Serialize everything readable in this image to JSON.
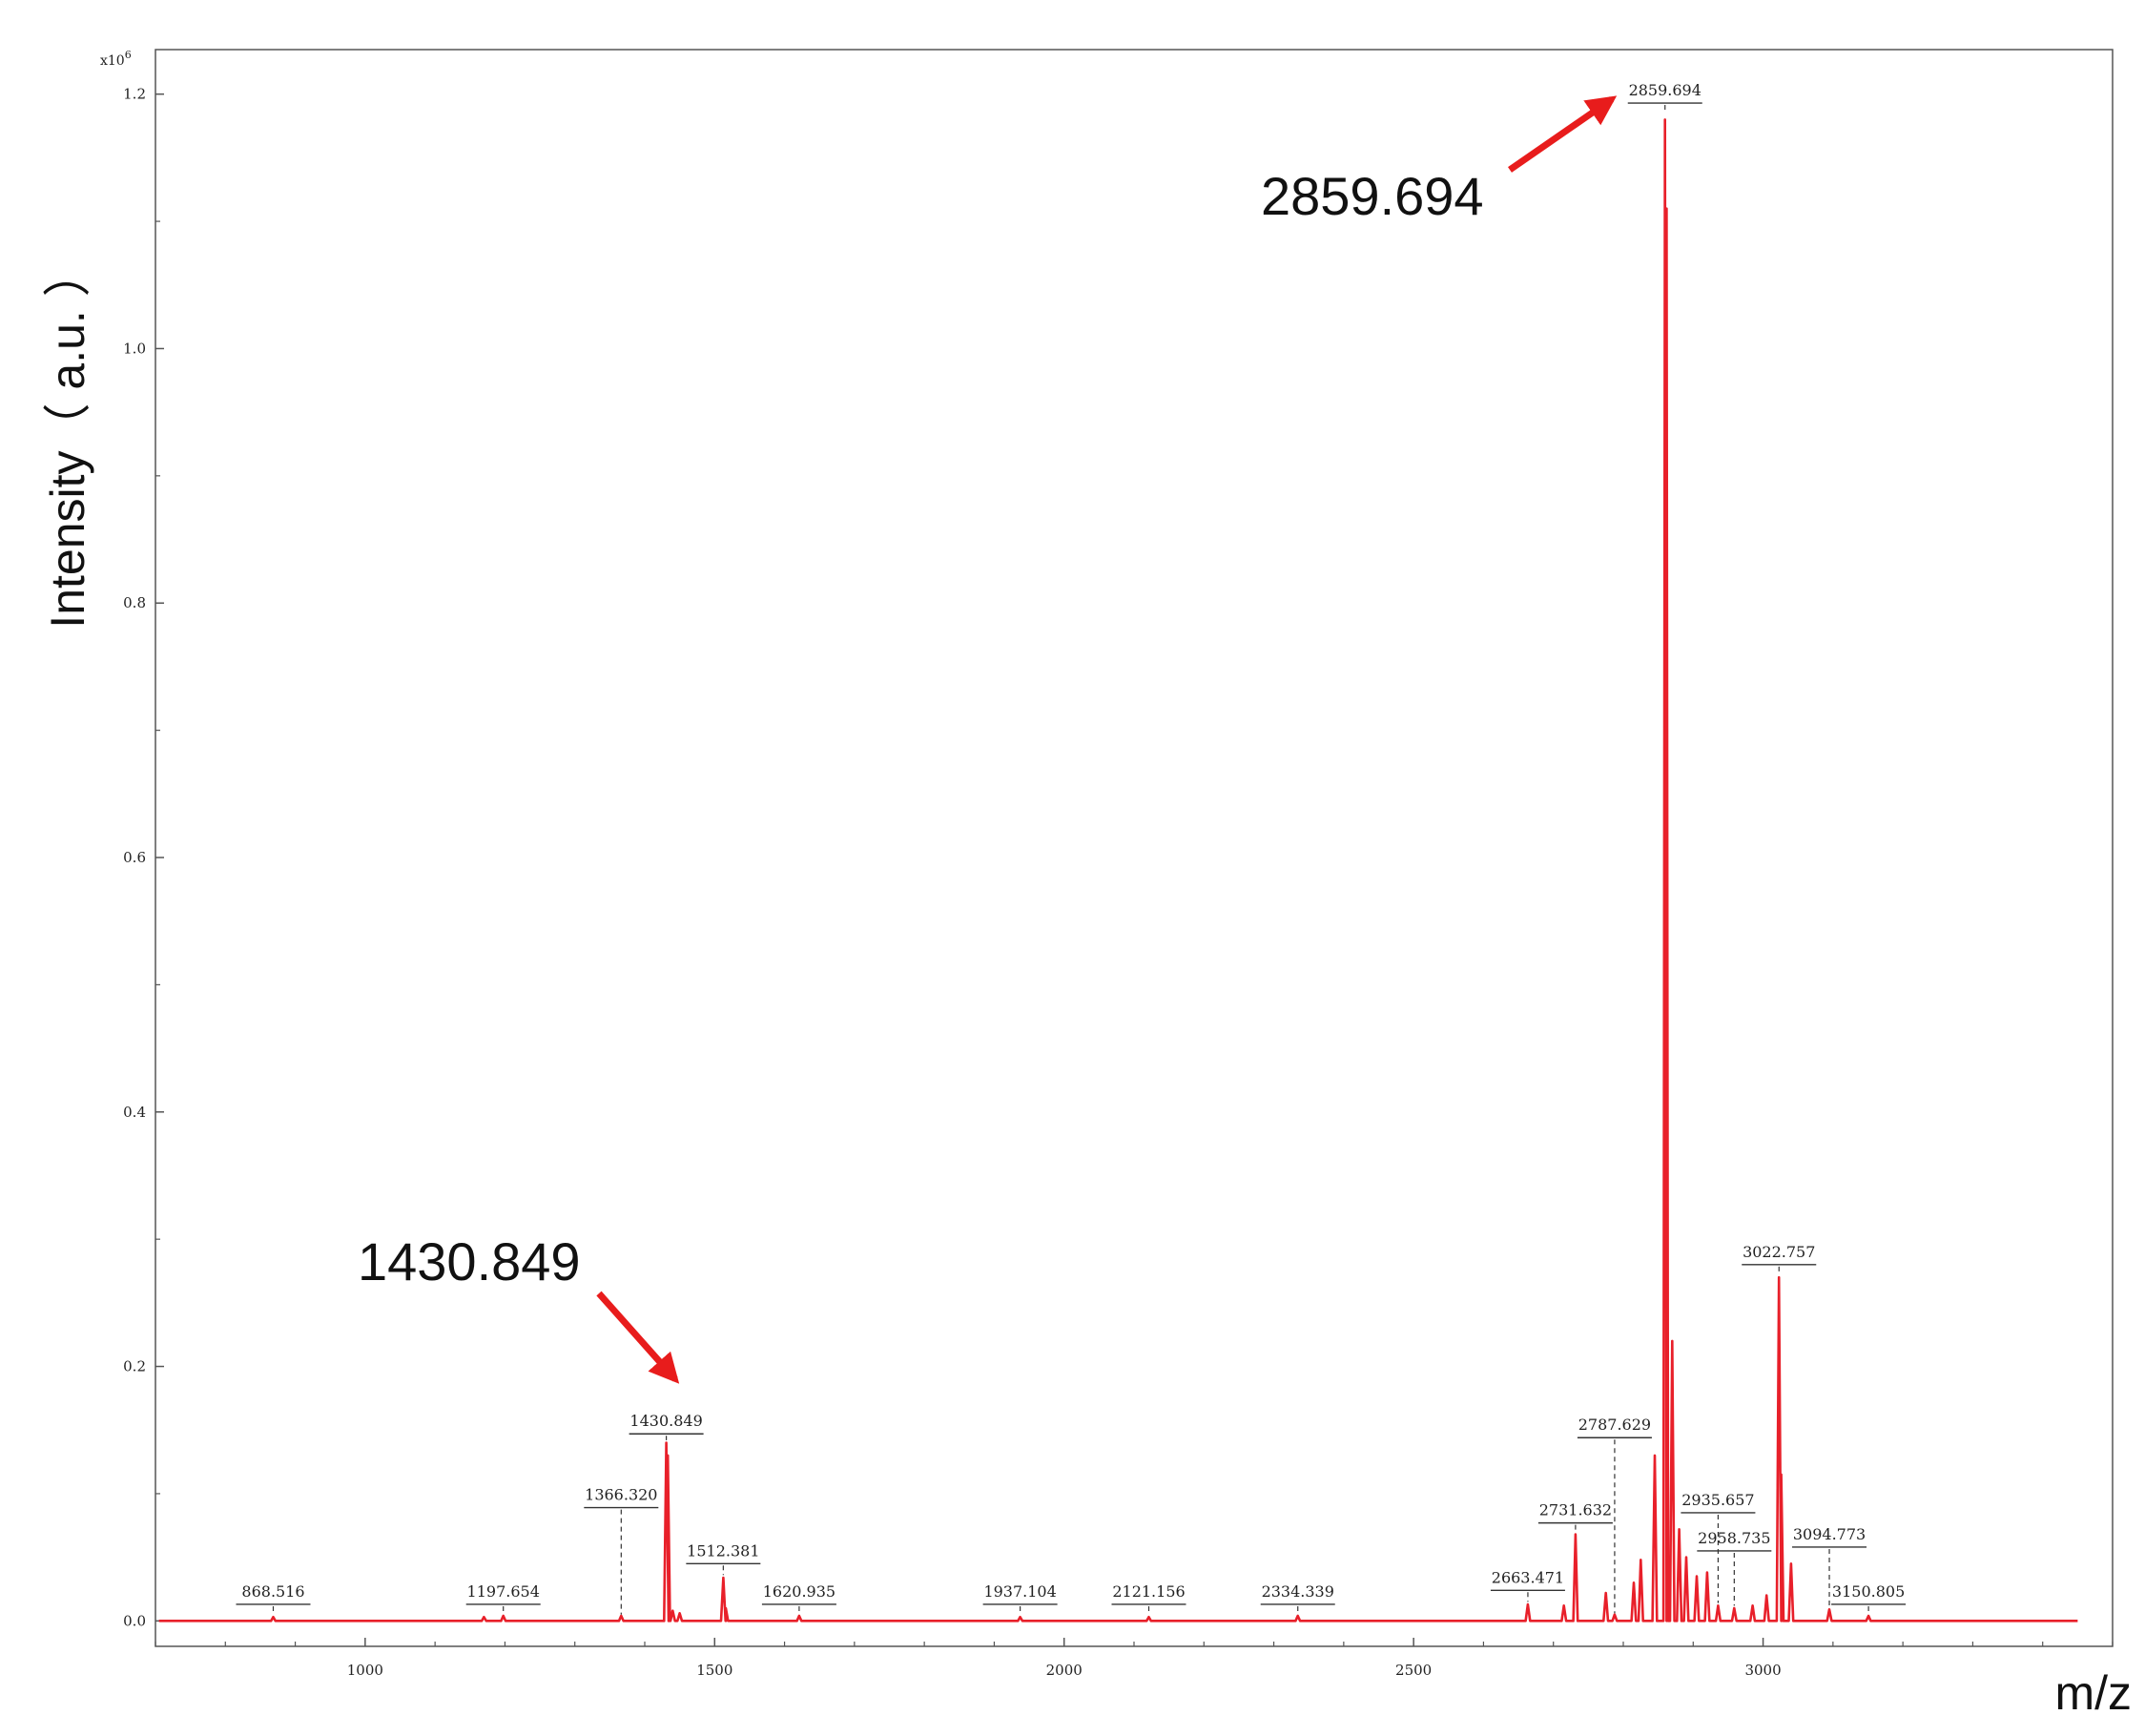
{
  "chart_data": {
    "type": "line",
    "xlabel": "m/z",
    "ylabel": "Intensity（ a.u. ）",
    "y_multiplier": "x10",
    "y_multiplier_exp": "6",
    "xlim": [
      700,
      3500
    ],
    "ylim": [
      -0.02,
      1.235
    ],
    "x_ticks": [
      1000,
      1500,
      2000,
      2500,
      3000
    ],
    "x_tick_labels": [
      "1000",
      "1500",
      "2000",
      "2500",
      "3000"
    ],
    "y_ticks": [
      0.0,
      0.2,
      0.4,
      0.6,
      0.8,
      1.0,
      1.2
    ],
    "y_tick_labels": [
      "0.0",
      "0.2",
      "0.4",
      "0.6",
      "0.8",
      "1.0",
      "1.2"
    ],
    "line_color": "#e8202a",
    "annotation_color": "#e81c1c",
    "series": [
      {
        "peaks": [
          {
            "x": 868.516,
            "y": 0.003
          },
          {
            "x": 1170,
            "y": 0.003
          },
          {
            "x": 1197.654,
            "y": 0.004
          },
          {
            "x": 1366.32,
            "y": 0.004
          },
          {
            "x": 1430.849,
            "y": 0.14
          },
          {
            "x": 1433,
            "y": 0.13
          },
          {
            "x": 1440,
            "y": 0.008
          },
          {
            "x": 1450,
            "y": 0.006
          },
          {
            "x": 1512.381,
            "y": 0.034
          },
          {
            "x": 1516,
            "y": 0.01
          },
          {
            "x": 1620.935,
            "y": 0.004
          },
          {
            "x": 1937.104,
            "y": 0.003
          },
          {
            "x": 2121.156,
            "y": 0.003
          },
          {
            "x": 2334.339,
            "y": 0.004
          },
          {
            "x": 2663.471,
            "y": 0.013
          },
          {
            "x": 2715,
            "y": 0.012
          },
          {
            "x": 2731.632,
            "y": 0.068
          },
          {
            "x": 2775,
            "y": 0.022
          },
          {
            "x": 2787.629,
            "y": 0.005
          },
          {
            "x": 2815,
            "y": 0.03
          },
          {
            "x": 2825,
            "y": 0.048
          },
          {
            "x": 2845,
            "y": 0.13
          },
          {
            "x": 2859.694,
            "y": 1.18
          },
          {
            "x": 2862,
            "y": 1.11
          },
          {
            "x": 2870,
            "y": 0.22
          },
          {
            "x": 2880,
            "y": 0.072
          },
          {
            "x": 2890,
            "y": 0.05
          },
          {
            "x": 2905,
            "y": 0.035
          },
          {
            "x": 2920,
            "y": 0.038
          },
          {
            "x": 2935.657,
            "y": 0.012
          },
          {
            "x": 2958.735,
            "y": 0.01
          },
          {
            "x": 2985,
            "y": 0.012
          },
          {
            "x": 3005,
            "y": 0.02
          },
          {
            "x": 3022.757,
            "y": 0.27
          },
          {
            "x": 3026,
            "y": 0.115
          },
          {
            "x": 3040,
            "y": 0.045
          },
          {
            "x": 3094.773,
            "y": 0.009
          },
          {
            "x": 3150.805,
            "y": 0.004
          }
        ]
      }
    ],
    "peak_labels": [
      {
        "text": "868.516",
        "x": 868.516,
        "label_y": 0.013,
        "tick_from": 0.005
      },
      {
        "text": "1197.654",
        "x": 1197.654,
        "label_y": 0.013,
        "tick_from": 0.005
      },
      {
        "text": "1366.320",
        "x": 1366.32,
        "label_y": 0.089,
        "tick_from": 0.005
      },
      {
        "text": "1430.849",
        "x": 1430.849,
        "label_y": 0.147,
        "tick_from": 0.142
      },
      {
        "text": "1512.381",
        "x": 1512.381,
        "label_y": 0.045,
        "tick_from": 0.036
      },
      {
        "text": "1620.935",
        "x": 1620.935,
        "label_y": 0.013,
        "tick_from": 0.005
      },
      {
        "text": "1937.104",
        "x": 1937.104,
        "label_y": 0.013,
        "tick_from": 0.005
      },
      {
        "text": "2121.156",
        "x": 2121.156,
        "label_y": 0.013,
        "tick_from": 0.005
      },
      {
        "text": "2334.339",
        "x": 2334.339,
        "label_y": 0.013,
        "tick_from": 0.005
      },
      {
        "text": "2663.471",
        "x": 2663.471,
        "label_y": 0.024,
        "tick_from": 0.015
      },
      {
        "text": "2731.632",
        "x": 2731.632,
        "label_y": 0.077,
        "tick_from": 0.07
      },
      {
        "text": "2787.629",
        "x": 2787.629,
        "label_y": 0.144,
        "tick_from": 0.006
      },
      {
        "text": "2859.694",
        "x": 2859.694,
        "label_y": 1.193,
        "tick_from": 1.185
      },
      {
        "text": "2935.657",
        "x": 2935.657,
        "label_y": 0.085,
        "tick_from": 0.014
      },
      {
        "text": "2958.735",
        "x": 2958.735,
        "label_y": 0.055,
        "tick_from": 0.012
      },
      {
        "text": "3022.757",
        "x": 3022.757,
        "label_y": 0.28,
        "tick_from": 0.272
      },
      {
        "text": "3094.773",
        "x": 3094.773,
        "label_y": 0.058,
        "tick_from": 0.011
      },
      {
        "text": "3150.805",
        "x": 3150.805,
        "label_y": 0.013,
        "tick_from": 0.005
      }
    ],
    "callouts": [
      {
        "text": "2859.694"
      },
      {
        "text": "1430.849"
      }
    ]
  }
}
